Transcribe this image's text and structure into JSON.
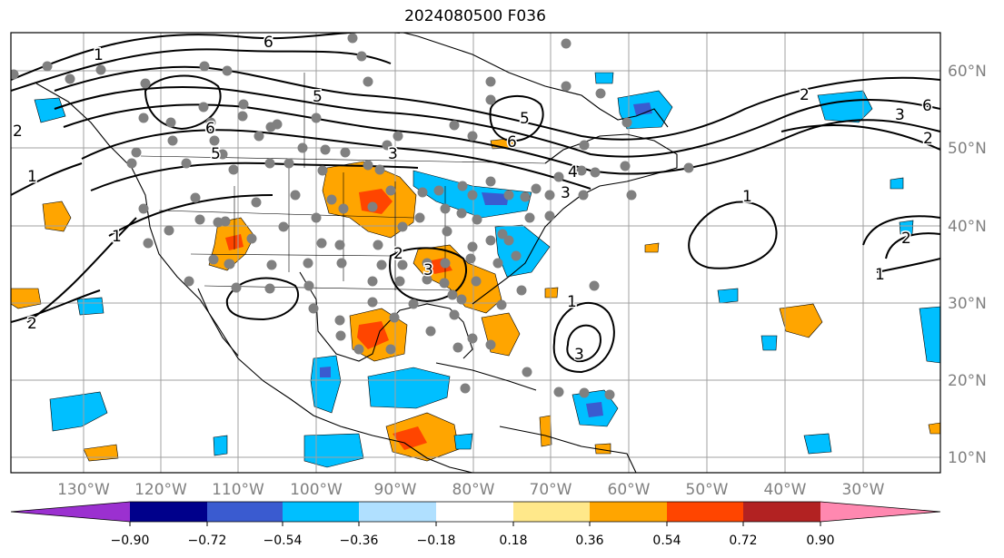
{
  "title": "2024080500 F036",
  "lon_labels": [
    "130°W",
    "120°W",
    "110°W",
    "100°W",
    "90°W",
    "80°W",
    "70°W",
    "60°W",
    "50°W",
    "40°W",
    "30°W"
  ],
  "lat_labels": [
    "60°N",
    "50°N",
    "40°N",
    "30°N",
    "20°N",
    "10°N"
  ],
  "colorbar": {
    "tick_labels": [
      "−0.90",
      "−0.72",
      "−0.54",
      "−0.36",
      "−0.18",
      "0.18",
      "0.36",
      "0.54",
      "0.72",
      "0.90"
    ],
    "colors": [
      "#9b30d0",
      "#00008b",
      "#3a5bd0",
      "#00bfff",
      "#b0e0ff",
      "#ffffff",
      "#ffe88a",
      "#ffa500",
      "#ff4500",
      "#b22222",
      "#ff88b0"
    ]
  },
  "contour_labels": [
    "1",
    "2",
    "3",
    "4",
    "5",
    "6"
  ],
  "colors": {
    "positive": "#ffa500",
    "positive_strong": "#ff4500",
    "negative": "#00bfff",
    "negative_strong": "#3a5bd0",
    "stations": "#808080",
    "grid": "#a0a0a0",
    "label_gray": "#808080"
  }
}
